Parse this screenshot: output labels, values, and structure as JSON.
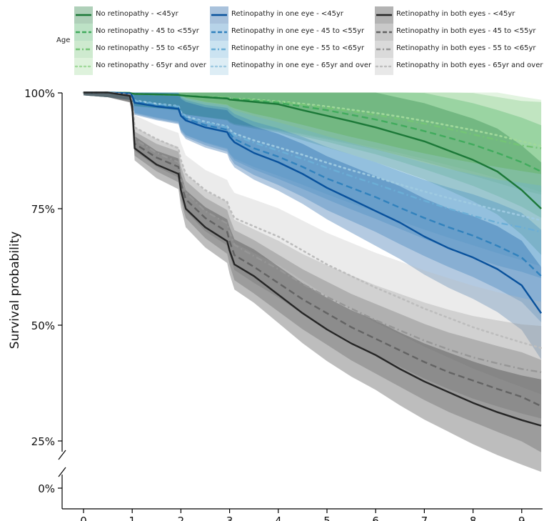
{
  "chart_data": {
    "type": "line",
    "title": "",
    "xlabel": "",
    "ylabel": "Survival probability",
    "legend_title": "Age",
    "legend_position": "top",
    "xlim": [
      -0.45,
      9.45
    ],
    "ylim": [
      0,
      1
    ],
    "axis_break": true,
    "x_ticks": [
      "0",
      "1",
      "2",
      "3",
      "4",
      "5",
      "6",
      "7",
      "8",
      "9"
    ],
    "y_ticks": [
      "0%",
      "25%",
      "50%",
      "75%",
      "100%"
    ],
    "x": [
      0,
      0.5,
      0.95,
      1,
      1.05,
      1.5,
      1.95,
      2,
      2.1,
      2.5,
      2.95,
      3,
      3.1,
      3.5,
      4,
      4.5,
      5,
      5.5,
      6,
      6.5,
      7,
      7.5,
      8,
      8.5,
      9,
      9.4
    ],
    "colors": {
      "green": [
        "#1b7837",
        "#41ab5d",
        "#74c476",
        "#a1d99b"
      ],
      "blue": [
        "#08519c",
        "#3182bd",
        "#6baed6",
        "#9ecae1"
      ],
      "gray": [
        "#252525",
        "#636363",
        "#969696",
        "#bdbdbd"
      ]
    },
    "series": [
      {
        "name": "No retinopathy - <45yr",
        "color": "#1b7837",
        "dash": "solid",
        "values": [
          1.0,
          1.0,
          0.999,
          0.998,
          0.997,
          0.996,
          0.995,
          0.994,
          0.993,
          0.99,
          0.987,
          0.985,
          0.984,
          0.98,
          0.975,
          0.962,
          0.95,
          0.938,
          0.925,
          0.91,
          0.895,
          0.875,
          0.855,
          0.83,
          0.79,
          0.75
        ]
      },
      {
        "name": "No retinopathy - 45 to <55yr",
        "color": "#41ab5d",
        "dash": "dash",
        "values": [
          1.0,
          1.0,
          0.999,
          0.998,
          0.997,
          0.996,
          0.995,
          0.994,
          0.993,
          0.991,
          0.988,
          0.987,
          0.986,
          0.983,
          0.978,
          0.97,
          0.962,
          0.952,
          0.942,
          0.93,
          0.917,
          0.903,
          0.888,
          0.87,
          0.85,
          0.83
        ]
      },
      {
        "name": "No retinopathy - 55 to <65yr",
        "color": "#74c476",
        "dash": "dashdot",
        "values": [
          1.0,
          1.0,
          0.999,
          0.998,
          0.997,
          0.996,
          0.995,
          0.994,
          0.993,
          0.991,
          0.989,
          0.988,
          0.987,
          0.984,
          0.98,
          0.974,
          0.967,
          0.96,
          0.952,
          0.943,
          0.933,
          0.922,
          0.91,
          0.898,
          0.886,
          0.88
        ]
      },
      {
        "name": "No retinopathy - 65yr and over",
        "color": "#a1d99b",
        "dash": "dot",
        "values": [
          1.0,
          1.0,
          0.999,
          0.998,
          0.997,
          0.996,
          0.995,
          0.994,
          0.993,
          0.991,
          0.989,
          0.988,
          0.987,
          0.985,
          0.981,
          0.976,
          0.97,
          0.963,
          0.956,
          0.948,
          0.939,
          0.929,
          0.919,
          0.908,
          0.895,
          0.885
        ]
      },
      {
        "name": "Retinopathy in one eye - <45yr",
        "color": "#08519c",
        "dash": "solid",
        "values": [
          1.0,
          1.0,
          0.998,
          0.993,
          0.978,
          0.97,
          0.965,
          0.95,
          0.94,
          0.925,
          0.915,
          0.905,
          0.893,
          0.87,
          0.85,
          0.825,
          0.795,
          0.77,
          0.745,
          0.72,
          0.69,
          0.665,
          0.645,
          0.62,
          0.585,
          0.525
        ]
      },
      {
        "name": "Retinopathy in one eye - 45 to <55yr",
        "color": "#3182bd",
        "dash": "dash",
        "values": [
          1.0,
          1.0,
          0.998,
          0.994,
          0.98,
          0.972,
          0.967,
          0.953,
          0.944,
          0.93,
          0.92,
          0.912,
          0.9,
          0.88,
          0.862,
          0.84,
          0.815,
          0.795,
          0.775,
          0.752,
          0.73,
          0.71,
          0.692,
          0.67,
          0.645,
          0.605
        ]
      },
      {
        "name": "Retinopathy in one eye - 55 to <65yr",
        "color": "#6baed6",
        "dash": "dashdot",
        "values": [
          1.0,
          1.0,
          0.998,
          0.995,
          0.982,
          0.975,
          0.97,
          0.957,
          0.948,
          0.935,
          0.925,
          0.918,
          0.908,
          0.892,
          0.875,
          0.857,
          0.838,
          0.82,
          0.803,
          0.785,
          0.767,
          0.75,
          0.735,
          0.72,
          0.71,
          0.7
        ]
      },
      {
        "name": "Retinopathy in one eye - 65yr and over",
        "color": "#9ecae1",
        "dash": "dot",
        "values": [
          1.0,
          1.0,
          0.998,
          0.995,
          0.983,
          0.976,
          0.971,
          0.958,
          0.949,
          0.937,
          0.927,
          0.92,
          0.912,
          0.897,
          0.882,
          0.866,
          0.849,
          0.833,
          0.818,
          0.802,
          0.787,
          0.773,
          0.76,
          0.747,
          0.735,
          0.725
        ]
      },
      {
        "name": "Retinopathy in both eyes - <45yr",
        "color": "#252525",
        "dash": "solid",
        "values": [
          1.0,
          1.0,
          0.993,
          0.97,
          0.88,
          0.845,
          0.825,
          0.79,
          0.75,
          0.71,
          0.68,
          0.66,
          0.63,
          0.605,
          0.565,
          0.525,
          0.49,
          0.46,
          0.435,
          0.405,
          0.378,
          0.355,
          0.332,
          0.312,
          0.295,
          0.283
        ]
      },
      {
        "name": "Retinopathy in both eyes - 45 to <55yr",
        "color": "#636363",
        "dash": "dash",
        "values": [
          1.0,
          1.0,
          0.993,
          0.972,
          0.89,
          0.86,
          0.84,
          0.805,
          0.77,
          0.73,
          0.7,
          0.68,
          0.65,
          0.625,
          0.59,
          0.555,
          0.525,
          0.495,
          0.47,
          0.445,
          0.42,
          0.398,
          0.38,
          0.362,
          0.345,
          0.325
        ]
      },
      {
        "name": "Retinopathy in both eyes - 55 to <65yr",
        "color": "#969696",
        "dash": "dashdot",
        "values": [
          1.0,
          1.0,
          0.994,
          0.975,
          0.9,
          0.87,
          0.85,
          0.818,
          0.785,
          0.745,
          0.718,
          0.7,
          0.672,
          0.648,
          0.62,
          0.588,
          0.56,
          0.535,
          0.51,
          0.488,
          0.466,
          0.447,
          0.43,
          0.417,
          0.405,
          0.398
        ]
      },
      {
        "name": "Retinopathy in both eyes - 65yr and over",
        "color": "#bdbdbd",
        "dash": "dot",
        "values": [
          1.0,
          1.0,
          0.995,
          0.98,
          0.925,
          0.9,
          0.88,
          0.855,
          0.825,
          0.79,
          0.765,
          0.75,
          0.73,
          0.712,
          0.69,
          0.66,
          0.63,
          0.605,
          0.58,
          0.558,
          0.535,
          0.515,
          0.495,
          0.478,
          0.462,
          0.45
        ]
      }
    ]
  }
}
